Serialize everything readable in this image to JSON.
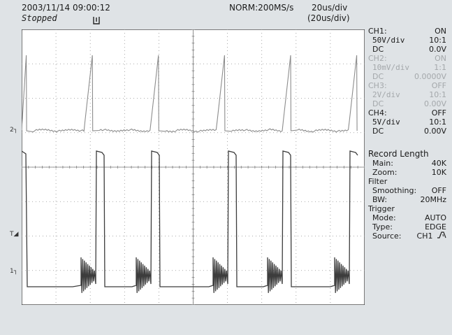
{
  "header": {
    "datetime": "2003/11/14  09:00:12",
    "status": "Stopped",
    "acq_mode": "NORM:200MS/s",
    "timebase": "20us/div",
    "timebase_zoom": "(20us/div)"
  },
  "channels": [
    {
      "name": "CH1:",
      "state": "ON",
      "scale": "50V/div",
      "probe": "10:1",
      "coupling": "DC",
      "offset": "0.0V",
      "active": true
    },
    {
      "name": "CH2:",
      "state": "ON",
      "scale": "10mV/div",
      "probe": "1:1",
      "coupling": "DC",
      "offset": "0.0000V",
      "active": false
    },
    {
      "name": "CH3:",
      "state": "OFF",
      "scale": "2V/div",
      "probe": "10:1",
      "coupling": "DC",
      "offset": "0.00V",
      "active": false
    },
    {
      "name": "CH4:",
      "state": "OFF",
      "scale": "5V/div",
      "probe": "10:1",
      "coupling": "DC",
      "offset": "0.00V",
      "active": true
    }
  ],
  "record": {
    "title": "Record Length",
    "main_label": "Main:",
    "main_value": "40K",
    "zoom_label": "Zoom:",
    "zoom_value": "10K"
  },
  "filter": {
    "title": "Filter",
    "smoothing_label": "Smoothing:",
    "smoothing_value": "OFF",
    "bw_label": "BW:",
    "bw_value": "20MHz"
  },
  "trigger": {
    "title": "Trigger",
    "mode_label": "Mode:",
    "mode_value": "AUTO",
    "type_label": "Type:",
    "type_value": "EDGE",
    "source_label": "Source:",
    "source_value": "CH1",
    "slope_icon": "rising-falling-edge-icon"
  },
  "markers": {
    "ch2": "2",
    "ch1": "1",
    "trigger_level": "T"
  },
  "colors": {
    "background": "#dfe3e6",
    "screen": "#ffffff",
    "ch1_trace": "#3c3c3c",
    "ch2_trace": "#8c8c8c",
    "grid": "#909090",
    "dim_text": "#a4a8ab"
  },
  "display": {
    "h_divisions": 10,
    "v_divisions": 8,
    "grid": "dotted"
  }
}
